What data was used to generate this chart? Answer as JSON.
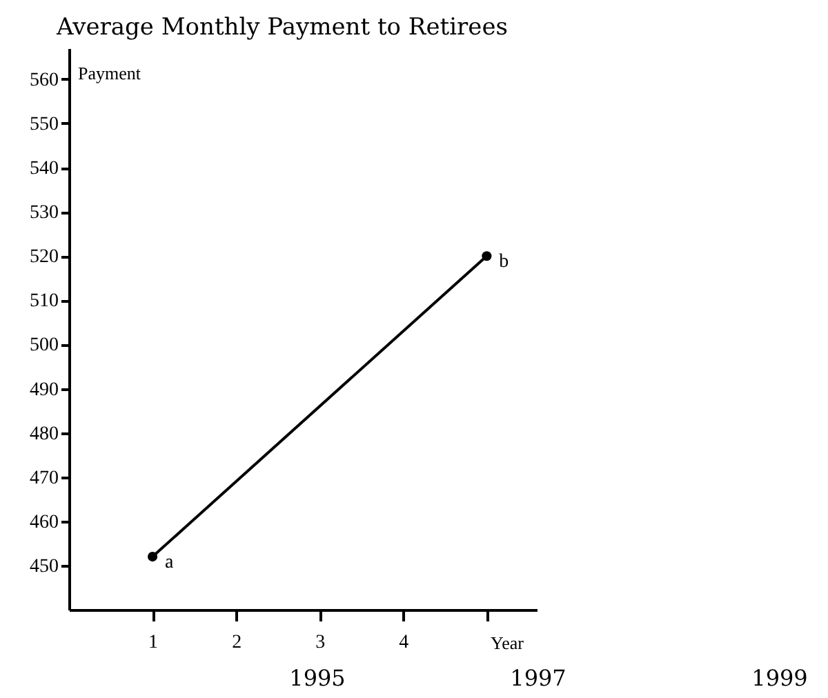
{
  "chart_data": {
    "type": "line",
    "title": "Average Monthly Payment to Retirees",
    "xlabel": "Year",
    "ylabel": "Payment",
    "x": [
      1,
      5
    ],
    "series": [
      {
        "color": "#000000",
        "values": [
          452,
          520
        ]
      }
    ],
    "marker": "circle",
    "line_style": "solid",
    "grid": false,
    "xlim": [
      0,
      5.6
    ],
    "xticks": [
      1,
      2,
      3,
      4,
      {
        "value": 5,
        "label": null
      }
    ],
    "ylim": [
      440,
      567
    ],
    "yticks": [
      450,
      460,
      470,
      480,
      490,
      500,
      510,
      520,
      530,
      540,
      550,
      560
    ],
    "annotations": [
      {
        "text": "a",
        "x": 1,
        "y": 452
      },
      {
        "text": "b",
        "x": 5,
        "y": 520
      },
      "1995",
      "1997",
      "1999"
    ]
  }
}
